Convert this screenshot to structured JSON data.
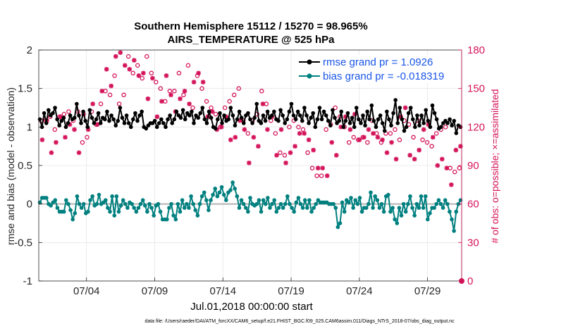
{
  "chart_data": {
    "type": "line",
    "title": "Southern Hemisphere 15112 / 15270 = 98.965%",
    "subtitle": "AIRS_TEMPERATURE @ 525 hPa",
    "xlabel": "Jul.01,2018 00:00:00 start",
    "ylabel_left": "rmse and bias (model - observation)",
    "ylabel_right": "# of obs: o=possible; ×=assimilated",
    "x_ticks": [
      {
        "day": 3.5,
        "label": "07/04"
      },
      {
        "day": 8.5,
        "label": "07/09"
      },
      {
        "day": 13.5,
        "label": "07/14"
      },
      {
        "day": 18.5,
        "label": "07/19"
      },
      {
        "day": 23.5,
        "label": "07/24"
      },
      {
        "day": 28.5,
        "label": "07/29"
      }
    ],
    "xlim": [
      0.0,
      31.0
    ],
    "ylim_left": [
      -1,
      2
    ],
    "ylim_right": [
      0,
      180
    ],
    "y_ticks_left": [
      "-1",
      "-0.5",
      "0",
      "0.5",
      "1",
      "1.5",
      "2"
    ],
    "y_ticks_right": [
      "0",
      "30",
      "60",
      "90",
      "120",
      "150",
      "180"
    ],
    "grid": true,
    "legend_position": "top-right",
    "colors": {
      "rmse": "#000000",
      "bias": "#00807f",
      "obs": "#d4145a",
      "legend_text": "#1a56e8",
      "zero_line": "#b8b8b8",
      "grid": "#e6e6e6"
    },
    "series": [
      {
        "name": "rmse grand pr = 1.0926",
        "color": "#000000",
        "values": [
          1.1,
          1.0,
          1.18,
          1.05,
          1.22,
          1.15,
          1.18,
          1.25,
          1.1,
          1.02,
          1.08,
          1.12,
          1.0,
          1.05,
          1.15,
          1.1,
          1.12,
          1.3,
          1.15,
          1.05,
          1.2,
          1.08,
          1.0,
          1.22,
          1.12,
          1.05,
          1.1,
          1.18,
          1.05,
          1.12,
          1.1,
          1.2,
          1.08,
          1.15,
          1.1,
          1.02,
          1.08,
          1.25,
          1.12,
          1.05,
          1.15,
          1.05,
          1.0,
          1.1,
          1.18,
          1.08,
          1.15,
          1.2,
          1.0,
          0.98,
          1.02,
          1.05,
          1.05,
          1.08,
          1.0,
          1.05,
          1.1,
          1.05,
          1.0,
          1.1,
          1.15,
          1.05,
          1.1,
          1.2,
          1.15,
          1.12,
          1.22,
          1.1,
          1.18,
          1.15,
          1.2,
          1.05,
          1.15,
          1.12,
          1.18,
          1.25,
          1.1,
          1.05,
          1.2,
          1.12,
          1.0,
          0.98,
          1.1,
          1.18,
          1.05,
          1.15,
          1.08,
          1.1,
          1.25,
          1.15,
          1.02,
          1.1,
          1.2,
          1.12,
          1.05,
          1.15,
          1.18,
          1.1,
          1.05,
          1.12,
          1.3,
          1.08,
          1.05,
          1.15,
          1.08,
          1.2,
          1.12,
          1.15,
          1.2,
          1.1,
          1.08,
          1.22,
          1.15,
          1.05,
          1.1,
          1.2,
          1.3,
          1.15,
          1.1,
          1.2,
          1.15,
          1.08,
          1.25,
          1.15,
          1.05,
          1.12,
          1.18,
          1.0,
          1.1,
          1.25,
          1.1,
          1.2,
          1.15,
          1.08,
          1.02,
          1.22,
          1.12,
          1.05,
          1.08,
          1.2,
          1.0,
          1.08,
          1.18,
          1.05,
          1.12,
          1.0,
          1.25,
          1.1,
          1.05,
          1.15,
          1.02,
          1.2,
          1.1,
          1.28,
          1.08,
          1.0,
          1.1,
          1.15,
          1.05,
          0.95,
          1.2,
          1.1,
          1.02,
          1.18,
          1.35,
          1.05,
          1.25,
          1.1,
          0.95,
          1.0,
          1.18,
          1.25,
          1.1,
          1.0,
          1.15,
          1.02,
          1.15,
          1.05,
          1.22,
          1.08,
          1.0,
          1.28,
          1.18,
          1.1,
          0.98,
          1.0,
          1.05,
          1.08,
          1.05,
          1.1,
          1.02,
          1.08,
          0.92,
          1.02,
          1.0
        ]
      },
      {
        "name": "bias grand pr = -0.018319",
        "color": "#00807f",
        "values": [
          0.02,
          0.08,
          0.08,
          0.08,
          0.0,
          -0.02,
          0.02,
          0.05,
          -0.05,
          -0.1,
          -0.1,
          -0.1,
          0.05,
          0.0,
          -0.08,
          -0.2,
          -0.12,
          0.1,
          0.0,
          -0.05,
          0.0,
          -0.12,
          -0.1,
          0.05,
          0.1,
          -0.02,
          0.0,
          0.12,
          0.0,
          0.02,
          0.05,
          -0.05,
          -0.1,
          0.1,
          -0.15,
          0.1,
          -0.1,
          -0.02,
          0.05,
          0.0,
          -0.05,
          0.02,
          0.0,
          -0.05,
          -0.1,
          -0.05,
          0.0,
          0.05,
          -0.02,
          -0.1,
          0.0,
          -0.05,
          -0.15,
          -0.02,
          0.0,
          -0.1,
          -0.2,
          -0.2,
          -0.2,
          -0.05,
          0.0,
          -0.15,
          -0.2,
          0.0,
          -0.1,
          0.05,
          -0.05,
          0.0,
          -0.05,
          0.1,
          0.0,
          -0.08,
          -0.15,
          0.0,
          0.1,
          0.15,
          0.05,
          -0.08,
          0.05,
          0.12,
          0.2,
          0.1,
          0.15,
          0.22,
          0.12,
          0.05,
          0.15,
          0.18,
          0.28,
          0.2,
          0.1,
          -0.05,
          0.05,
          0.0,
          -0.05,
          -0.1,
          0.08,
          0.0,
          -0.02,
          0.0,
          0.05,
          -0.1,
          0.05,
          0.0,
          0.08,
          -0.05,
          0.0,
          0.05,
          -0.1,
          -0.05,
          0.0,
          -0.05,
          0.0,
          0.1,
          0.0,
          -0.05,
          -0.1,
          0.02,
          0.08,
          0.0,
          -0.05,
          0.05,
          -0.05,
          0.05,
          -0.1,
          -0.05,
          0.0,
          0.05,
          0.02,
          0.02,
          0.02,
          0.02,
          0.0,
          0.0,
          0.0,
          -0.05,
          -0.3,
          -0.25,
          0.02,
          -0.1,
          0.05,
          0.02,
          0.08,
          -0.05,
          0.05,
          0.0,
          0.08,
          -0.1,
          -0.05,
          -0.05,
          0.0,
          0.15,
          -0.05,
          0.1,
          0.05,
          -0.05,
          0.0,
          -0.1,
          0.1,
          0.12,
          -0.1,
          -0.05,
          -0.2,
          -0.25,
          -0.05,
          -0.15,
          0.0,
          -0.1,
          0.0,
          0.1,
          -0.05,
          -0.15,
          0.0,
          -0.05,
          0.1,
          -0.05,
          0.1,
          -0.2,
          -0.12,
          -0.05,
          -0.05,
          0.0,
          0.05,
          0.0,
          -0.05,
          0.05,
          0.0,
          -0.1,
          -0.2,
          -0.35,
          -0.1,
          0.0,
          0.05
        ]
      }
    ],
    "obs_possible": [
      125,
      125,
      128,
      118,
      128,
      130,
      132,
      125,
      132,
      108,
      112,
      132,
      122,
      138,
      148,
      145,
      160,
      138,
      145,
      175,
      162,
      168,
      158,
      175,
      162,
      155,
      150,
      140,
      148,
      148,
      162,
      145,
      168,
      135,
      160,
      150,
      140,
      135,
      130,
      120,
      135,
      140,
      145,
      150,
      125,
      115,
      125,
      130,
      148,
      138,
      125,
      115,
      100,
      98,
      120,
      125,
      120,
      118,
      100,
      88,
      82,
      82,
      118,
      122,
      135,
      128,
      120,
      108,
      112,
      110,
      112,
      108,
      125,
      115,
      108,
      115,
      115,
      118,
      110,
      125,
      122,
      112,
      125,
      110,
      108,
      105,
      115,
      118,
      120,
      88,
      85,
      88
    ],
    "obs_assimilated": [
      110,
      125,
      100,
      108,
      128,
      112,
      122,
      118,
      100,
      130,
      118,
      138,
      122,
      148,
      165,
      152,
      175,
      178,
      168,
      165,
      172,
      160,
      162,
      142,
      158,
      128,
      140,
      160,
      145,
      132,
      142,
      148,
      138,
      155,
      162,
      155,
      128,
      132,
      118,
      120,
      128,
      110,
      112,
      125,
      118,
      92,
      112,
      105,
      138,
      118,
      128,
      98,
      118,
      92,
      100,
      105,
      115,
      115,
      110,
      102,
      88,
      88,
      82,
      108,
      98,
      120,
      128,
      118,
      130,
      110,
      112,
      118,
      115,
      112,
      110,
      100,
      108,
      95,
      128,
      135,
      98,
      95,
      102,
      118,
      122,
      112,
      90,
      95,
      88,
      75,
      102,
      105
    ],
    "footer": "data file: /Users/raeder/DAI/ATM_forcXX/CAM6_setup/f.e21.FHIST_BGC.f09_025.CAM6assim.011/Diags_NTrS_2018-07/obs_diag_output.nc"
  }
}
